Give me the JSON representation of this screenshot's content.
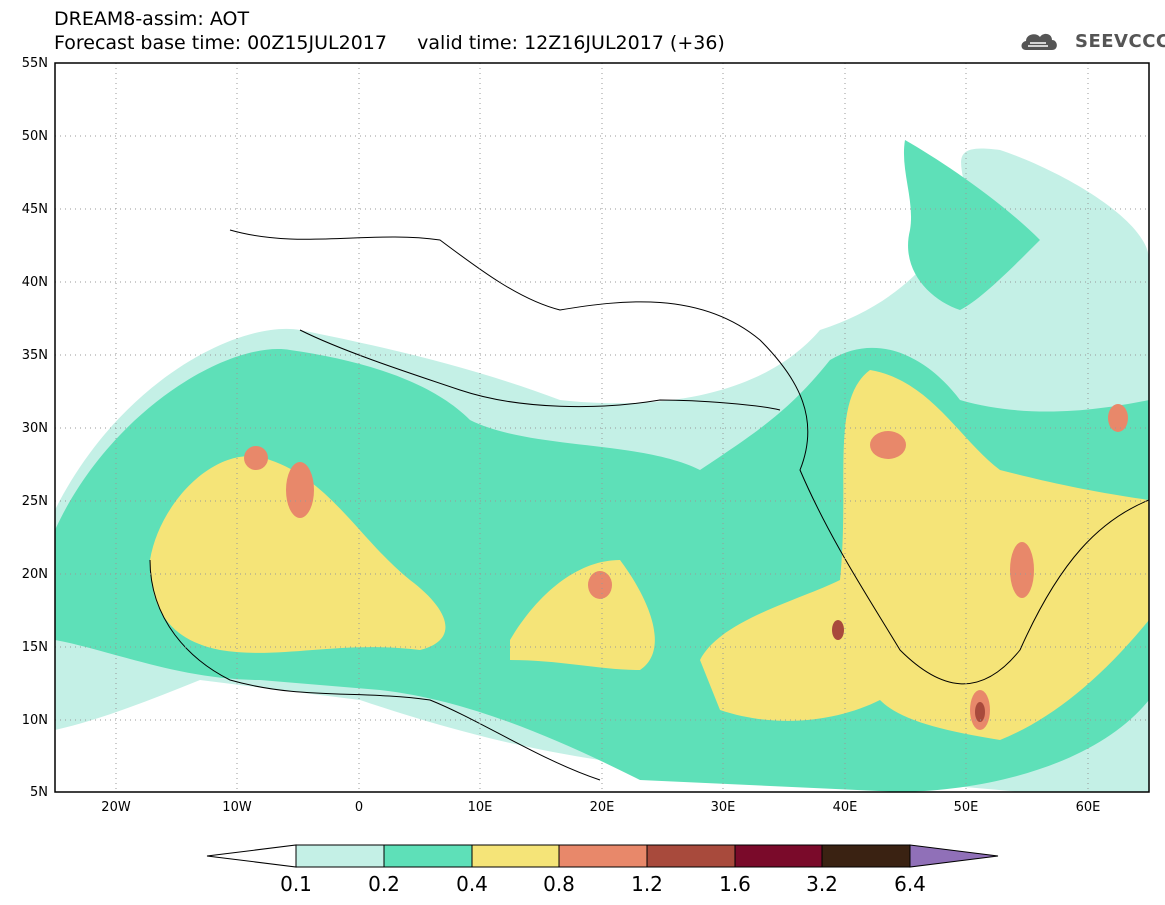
{
  "header": {
    "title_line1": "DREAM8-assim: AOT",
    "title_line2": "Forecast base time: 00Z15JUL2017     valid time: 12Z16JUL2017 (+36)"
  },
  "logo": {
    "text": "SEEVCCC",
    "icon": "cloud-icon"
  },
  "map": {
    "lat_labels": [
      "55N",
      "50N",
      "45N",
      "40N",
      "35N",
      "30N",
      "25N",
      "20N",
      "15N",
      "10N",
      "5N"
    ],
    "lon_labels": [
      "20W",
      "10W",
      "0",
      "10E",
      "20E",
      "30E",
      "40E",
      "50E",
      "60E"
    ]
  },
  "colorbar": {
    "levels": [
      "0.1",
      "0.2",
      "0.4",
      "0.8",
      "1.2",
      "1.6",
      "3.2",
      "6.4"
    ],
    "colors": [
      "#ffffff",
      "#c4f0e6",
      "#5ee0b8",
      "#f5e478",
      "#e8886a",
      "#a84a3c",
      "#7a0a2a",
      "#3a2212",
      "#9070b8"
    ]
  }
}
